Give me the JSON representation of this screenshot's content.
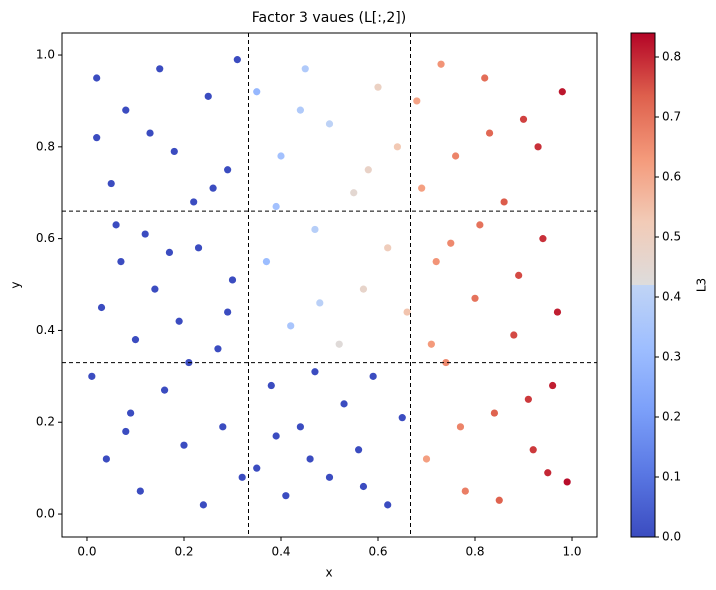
{
  "chart_data": {
    "type": "scatter",
    "title": "Factor 3 vaues (L[:,2])",
    "x_label": "x",
    "y_label": "y",
    "x": [
      0.02,
      0.05,
      0.08,
      0.12,
      0.15,
      0.18,
      0.22,
      0.25,
      0.29,
      0.31,
      0.03,
      0.07,
      0.1,
      0.14,
      0.19,
      0.23,
      0.27,
      0.3,
      0.01,
      0.04,
      0.09,
      0.11,
      0.16,
      0.2,
      0.24,
      0.28,
      0.32,
      0.06,
      0.13,
      0.21,
      0.26,
      0.17,
      0.08,
      0.29,
      0.02,
      0.35,
      0.38,
      0.41,
      0.44,
      0.47,
      0.5,
      0.53,
      0.56,
      0.59,
      0.62,
      0.65,
      0.46,
      0.39,
      0.57,
      0.35,
      0.37,
      0.4,
      0.42,
      0.45,
      0.47,
      0.5,
      0.52,
      0.55,
      0.57,
      0.6,
      0.62,
      0.64,
      0.66,
      0.39,
      0.48,
      0.58,
      0.44,
      0.68,
      0.7,
      0.72,
      0.74,
      0.76,
      0.78,
      0.8,
      0.82,
      0.84,
      0.86,
      0.88,
      0.9,
      0.92,
      0.94,
      0.96,
      0.98,
      0.99,
      0.69,
      0.73,
      0.77,
      0.81,
      0.85,
      0.89,
      0.93,
      0.97,
      0.71,
      0.83,
      0.91,
      0.95,
      0.75
    ],
    "values": [
      0.95,
      0.72,
      0.88,
      0.61,
      0.97,
      0.79,
      0.68,
      0.91,
      0.75,
      0.99,
      0.45,
      0.55,
      0.38,
      0.49,
      0.42,
      0.58,
      0.36,
      0.51,
      0.3,
      0.12,
      0.22,
      0.05,
      0.27,
      0.15,
      0.02,
      0.19,
      0.08,
      0.63,
      0.83,
      0.33,
      0.71,
      0.57,
      0.18,
      0.44,
      0.82,
      0.1,
      0.28,
      0.04,
      0.19,
      0.31,
      0.08,
      0.24,
      0.14,
      0.3,
      0.02,
      0.21,
      0.12,
      0.17,
      0.06,
      0.92,
      0.55,
      0.78,
      0.41,
      0.97,
      0.62,
      0.85,
      0.37,
      0.7,
      0.49,
      0.93,
      0.58,
      0.8,
      0.44,
      0.67,
      0.46,
      0.75,
      0.88,
      0.9,
      0.12,
      0.55,
      0.33,
      0.78,
      0.05,
      0.47,
      0.95,
      0.22,
      0.68,
      0.39,
      0.86,
      0.14,
      0.6,
      0.28,
      0.92,
      0.07,
      0.71,
      0.98,
      0.19,
      0.63,
      0.03,
      0.52,
      0.8,
      0.44,
      0.37,
      0.83,
      0.25,
      0.09,
      0.59
    ],
    "color_values": [
      0,
      0,
      0,
      0,
      0,
      0,
      0,
      0,
      0,
      0,
      0,
      0,
      0,
      0,
      0,
      0,
      0,
      0,
      0,
      0,
      0,
      0,
      0,
      0,
      0,
      0,
      0,
      0,
      0,
      0,
      0,
      0,
      0,
      0,
      0,
      0,
      0,
      0,
      0,
      0,
      0,
      0,
      0,
      0,
      0,
      0,
      0,
      0,
      0,
      0.29,
      0.31,
      0.33,
      0.35,
      0.37,
      0.39,
      0.41,
      0.43,
      0.45,
      0.47,
      0.49,
      0.51,
      0.53,
      0.54,
      0.33,
      0.4,
      0.48,
      0.37,
      0.61,
      0.62,
      0.64,
      0.66,
      0.67,
      0.68,
      0.7,
      0.71,
      0.73,
      0.74,
      0.76,
      0.77,
      0.78,
      0.79,
      0.81,
      0.82,
      0.83,
      0.62,
      0.64,
      0.67,
      0.7,
      0.73,
      0.76,
      0.79,
      0.81,
      0.63,
      0.72,
      0.78,
      0.8,
      0.66
    ],
    "colormap": "coolwarm",
    "clim": [
      0,
      0.84
    ],
    "colorbar_label": "L3",
    "colorbar_ticks": [
      {
        "value": 0,
        "label": "0.0"
      },
      0.1,
      0.2,
      0.3,
      0.4,
      0.5,
      0.6,
      0.7,
      0.8
    ],
    "xlim": [
      -0.0515,
      1.0515
    ],
    "ylim": [
      -0.05,
      1.048
    ],
    "xticks": [
      {
        "value": 0,
        "label": "0.0"
      },
      0.2,
      0.4,
      0.6,
      0.8,
      {
        "value": 1,
        "label": "1.0"
      }
    ],
    "yticks": [
      {
        "value": 0,
        "label": "0.0"
      },
      0.2,
      0.4,
      0.6,
      0.8,
      {
        "value": 1,
        "label": "1.0"
      }
    ],
    "vlines": [
      0.333,
      0.667
    ],
    "hlines": [
      0.33,
      0.66
    ]
  }
}
